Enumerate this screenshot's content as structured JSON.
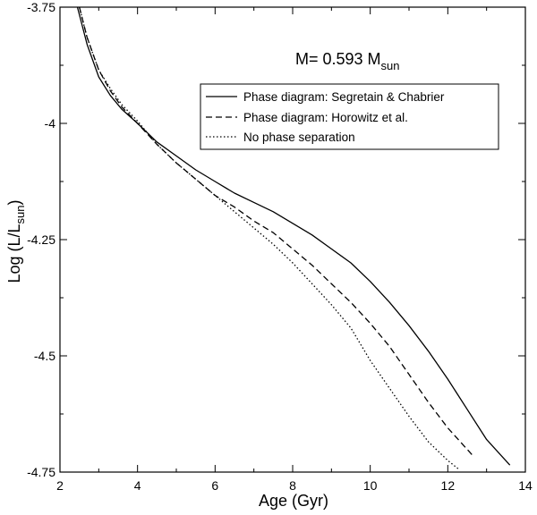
{
  "chart_data": {
    "type": "line",
    "title": "",
    "xlabel": "Age (Gyr)",
    "ylabel": {
      "main": "Log (L/L",
      "sub": "sun",
      "close": ")"
    },
    "xlim": [
      2,
      14
    ],
    "ylim": [
      -4.75,
      -3.75
    ],
    "xticks": [
      2,
      4,
      6,
      8,
      10,
      12,
      14
    ],
    "yticks": [
      -3.75,
      -4,
      -4.25,
      -4.5,
      -4.75
    ],
    "xtick_labels": [
      "2",
      "4",
      "6",
      "8",
      "10",
      "12",
      "14"
    ],
    "ytick_labels": [
      "-3.75",
      "-4",
      "-4.25",
      "-4.5",
      "-4.75"
    ],
    "annotation": {
      "text": "M= 0.593 M",
      "sub": "sun"
    },
    "legend_position": "top-right",
    "grid": false,
    "series": [
      {
        "name": "Phase diagram: Segretain & Chabrier",
        "style": "solid",
        "x": [
          2.45,
          2.7,
          3.0,
          3.3,
          3.6,
          4.0,
          4.5,
          5.0,
          5.5,
          6.0,
          6.5,
          7.0,
          7.5,
          8.0,
          8.5,
          9.0,
          9.5,
          10.0,
          10.5,
          11.0,
          11.5,
          12.0,
          12.5,
          13.0,
          13.6
        ],
        "y": [
          -3.75,
          -3.83,
          -3.9,
          -3.94,
          -3.97,
          -4.0,
          -4.04,
          -4.07,
          -4.1,
          -4.125,
          -4.15,
          -4.17,
          -4.19,
          -4.215,
          -4.24,
          -4.27,
          -4.3,
          -4.34,
          -4.385,
          -4.435,
          -4.49,
          -4.55,
          -4.615,
          -4.68,
          -4.735
        ]
      },
      {
        "name": "Phase diagram: Horowitz et al.",
        "style": "dashed",
        "x": [
          2.5,
          2.7,
          3.0,
          3.3,
          3.6,
          4.0,
          4.5,
          5.0,
          5.5,
          6.0,
          6.5,
          7.0,
          7.5,
          8.0,
          8.5,
          9.0,
          9.5,
          10.0,
          10.5,
          11.0,
          11.5,
          12.0,
          12.65
        ],
        "y": [
          -3.75,
          -3.815,
          -3.885,
          -3.93,
          -3.965,
          -4.0,
          -4.045,
          -4.085,
          -4.12,
          -4.155,
          -4.18,
          -4.21,
          -4.235,
          -4.27,
          -4.305,
          -4.345,
          -4.385,
          -4.43,
          -4.48,
          -4.54,
          -4.6,
          -4.655,
          -4.715
        ]
      },
      {
        "name": "No phase separation",
        "style": "dotted",
        "x": [
          2.5,
          2.7,
          3.0,
          3.3,
          3.6,
          4.0,
          4.5,
          5.0,
          5.5,
          6.0,
          6.5,
          7.0,
          7.5,
          8.0,
          8.5,
          9.0,
          9.5,
          10.0,
          10.5,
          11.0,
          11.5,
          12.0,
          12.3
        ],
        "y": [
          -3.75,
          -3.815,
          -3.885,
          -3.925,
          -3.96,
          -3.995,
          -4.045,
          -4.085,
          -4.12,
          -4.155,
          -4.19,
          -4.225,
          -4.26,
          -4.3,
          -4.345,
          -4.39,
          -4.44,
          -4.51,
          -4.57,
          -4.63,
          -4.685,
          -4.725,
          -4.745
        ]
      }
    ]
  }
}
